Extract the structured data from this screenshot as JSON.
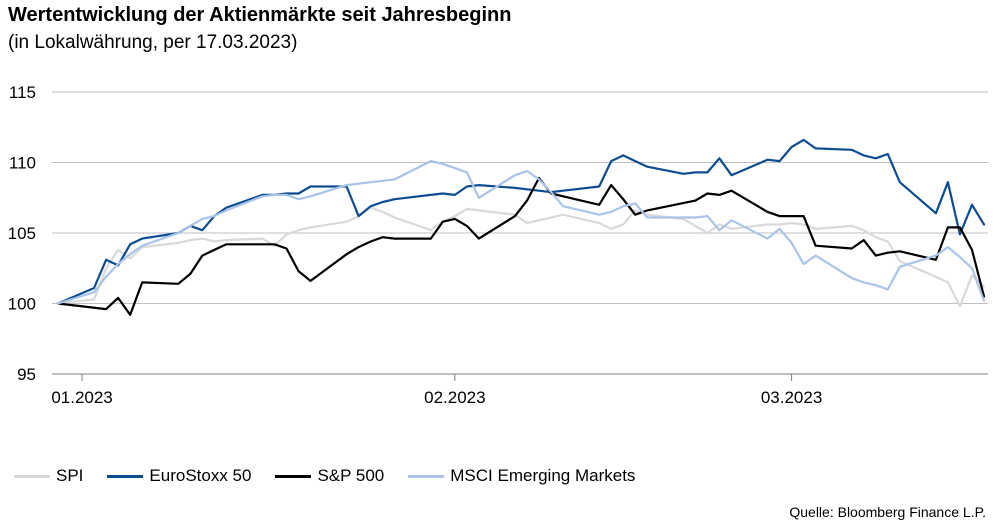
{
  "header": {
    "title": "Wertentwicklung der Aktienmärkte seit Jahresbeginn",
    "subtitle": "(in Lokalwährung, per 17.03.2023)"
  },
  "source": "Quelle: Bloomberg Finance L.P.",
  "chart_data": {
    "type": "line",
    "title": "Wertentwicklung der Aktienmärkte seit Jahresbeginn",
    "subtitle": "(in Lokalwährung, per 17.03.2023)",
    "xlabel": "",
    "ylabel": "",
    "ylim": [
      95,
      115
    ],
    "yticks": [
      95,
      100,
      105,
      110,
      115
    ],
    "xlim": [
      "2022-12-30",
      "2023-03-17"
    ],
    "xticks": [
      {
        "date": "2023-01-01",
        "label": "01.2023"
      },
      {
        "date": "2023-02-01",
        "label": "02.2023"
      },
      {
        "date": "2023-03-01",
        "label": "03.2023"
      }
    ],
    "grid": "horizontal",
    "legend": "bottom",
    "series": [
      {
        "name": "SPI",
        "color": "#d9d9d9",
        "points": [
          [
            "2022-12-30",
            100.0
          ],
          [
            "2023-01-02",
            100.3
          ],
          [
            "2023-01-03",
            102.5
          ],
          [
            "2023-01-04",
            103.8
          ],
          [
            "2023-01-05",
            103.2
          ],
          [
            "2023-01-06",
            104.0
          ],
          [
            "2023-01-09",
            104.3
          ],
          [
            "2023-01-10",
            104.5
          ],
          [
            "2023-01-11",
            104.6
          ],
          [
            "2023-01-12",
            104.4
          ],
          [
            "2023-01-13",
            104.5
          ],
          [
            "2023-01-16",
            104.6
          ],
          [
            "2023-01-17",
            104.1
          ],
          [
            "2023-01-18",
            104.9
          ],
          [
            "2023-01-19",
            105.2
          ],
          [
            "2023-01-20",
            105.4
          ],
          [
            "2023-01-23",
            105.8
          ],
          [
            "2023-01-24",
            106.2
          ],
          [
            "2023-01-25",
            106.8
          ],
          [
            "2023-01-26",
            106.5
          ],
          [
            "2023-01-27",
            106.1
          ],
          [
            "2023-01-30",
            105.2
          ],
          [
            "2023-01-31",
            105.8
          ],
          [
            "2023-02-01",
            106.2
          ],
          [
            "2023-02-02",
            106.7
          ],
          [
            "2023-02-03",
            106.6
          ],
          [
            "2023-02-06",
            106.3
          ],
          [
            "2023-02-07",
            105.7
          ],
          [
            "2023-02-08",
            105.9
          ],
          [
            "2023-02-09",
            106.1
          ],
          [
            "2023-02-10",
            106.3
          ],
          [
            "2023-02-13",
            105.7
          ],
          [
            "2023-02-14",
            105.3
          ],
          [
            "2023-02-15",
            105.6
          ],
          [
            "2023-02-16",
            106.6
          ],
          [
            "2023-02-17",
            106.3
          ],
          [
            "2023-02-20",
            106.0
          ],
          [
            "2023-02-21",
            105.5
          ],
          [
            "2023-02-22",
            105.0
          ],
          [
            "2023-02-23",
            105.6
          ],
          [
            "2023-02-24",
            105.3
          ],
          [
            "2023-02-27",
            105.6
          ],
          [
            "2023-02-28",
            105.6
          ],
          [
            "2023-03-01",
            105.7
          ],
          [
            "2023-03-02",
            105.6
          ],
          [
            "2023-03-03",
            105.3
          ],
          [
            "2023-03-06",
            105.5
          ],
          [
            "2023-03-07",
            105.2
          ],
          [
            "2023-03-08",
            104.7
          ],
          [
            "2023-03-09",
            104.4
          ],
          [
            "2023-03-10",
            103.0
          ],
          [
            "2023-03-13",
            101.9
          ],
          [
            "2023-03-14",
            101.5
          ],
          [
            "2023-03-15",
            99.8
          ],
          [
            "2023-03-16",
            102.0
          ],
          [
            "2023-03-17",
            101.2
          ]
        ]
      },
      {
        "name": "EuroStoxx 50",
        "color": "#0e4c92",
        "points": [
          [
            "2022-12-30",
            100.0
          ],
          [
            "2023-01-02",
            101.1
          ],
          [
            "2023-01-03",
            103.1
          ],
          [
            "2023-01-04",
            102.7
          ],
          [
            "2023-01-05",
            104.2
          ],
          [
            "2023-01-06",
            104.6
          ],
          [
            "2023-01-09",
            105.0
          ],
          [
            "2023-01-10",
            105.5
          ],
          [
            "2023-01-11",
            105.2
          ],
          [
            "2023-01-12",
            106.2
          ],
          [
            "2023-01-13",
            106.8
          ],
          [
            "2023-01-16",
            107.7
          ],
          [
            "2023-01-17",
            107.7
          ],
          [
            "2023-01-18",
            107.8
          ],
          [
            "2023-01-19",
            107.8
          ],
          [
            "2023-01-20",
            108.3
          ],
          [
            "2023-01-23",
            108.3
          ],
          [
            "2023-01-24",
            106.2
          ],
          [
            "2023-01-25",
            106.9
          ],
          [
            "2023-01-26",
            107.2
          ],
          [
            "2023-01-27",
            107.4
          ],
          [
            "2023-01-30",
            107.7
          ],
          [
            "2023-01-31",
            107.8
          ],
          [
            "2023-02-01",
            107.7
          ],
          [
            "2023-02-02",
            108.3
          ],
          [
            "2023-02-03",
            108.4
          ],
          [
            "2023-02-06",
            108.2
          ],
          [
            "2023-02-07",
            108.1
          ],
          [
            "2023-02-08",
            108.0
          ],
          [
            "2023-02-09",
            107.9
          ],
          [
            "2023-02-10",
            108.0
          ],
          [
            "2023-02-13",
            108.3
          ],
          [
            "2023-02-14",
            110.1
          ],
          [
            "2023-02-15",
            110.5
          ],
          [
            "2023-02-16",
            110.1
          ],
          [
            "2023-02-17",
            109.7
          ],
          [
            "2023-02-20",
            109.2
          ],
          [
            "2023-02-21",
            109.3
          ],
          [
            "2023-02-22",
            109.3
          ],
          [
            "2023-02-23",
            110.3
          ],
          [
            "2023-02-24",
            109.1
          ],
          [
            "2023-02-27",
            110.2
          ],
          [
            "2023-02-28",
            110.1
          ],
          [
            "2023-03-01",
            111.1
          ],
          [
            "2023-03-02",
            111.6
          ],
          [
            "2023-03-03",
            111.0
          ],
          [
            "2023-03-06",
            110.9
          ],
          [
            "2023-03-07",
            110.5
          ],
          [
            "2023-03-08",
            110.3
          ],
          [
            "2023-03-09",
            110.6
          ],
          [
            "2023-03-10",
            108.6
          ],
          [
            "2023-03-13",
            106.4
          ],
          [
            "2023-03-14",
            108.6
          ],
          [
            "2023-03-15",
            104.9
          ],
          [
            "2023-03-16",
            107.0
          ],
          [
            "2023-03-17",
            105.6
          ]
        ]
      },
      {
        "name": "S&P 500",
        "color": "#000000",
        "points": [
          [
            "2022-12-30",
            100.0
          ],
          [
            "2023-01-03",
            99.6
          ],
          [
            "2023-01-04",
            100.4
          ],
          [
            "2023-01-05",
            99.2
          ],
          [
            "2023-01-06",
            101.5
          ],
          [
            "2023-01-09",
            101.4
          ],
          [
            "2023-01-10",
            102.1
          ],
          [
            "2023-01-11",
            103.4
          ],
          [
            "2023-01-12",
            103.8
          ],
          [
            "2023-01-13",
            104.2
          ],
          [
            "2023-01-17",
            104.2
          ],
          [
            "2023-01-18",
            103.9
          ],
          [
            "2023-01-19",
            102.3
          ],
          [
            "2023-01-20",
            101.6
          ],
          [
            "2023-01-23",
            103.5
          ],
          [
            "2023-01-24",
            104.0
          ],
          [
            "2023-01-25",
            104.4
          ],
          [
            "2023-01-26",
            104.7
          ],
          [
            "2023-01-27",
            104.6
          ],
          [
            "2023-01-30",
            104.6
          ],
          [
            "2023-01-31",
            105.8
          ],
          [
            "2023-02-01",
            106.0
          ],
          [
            "2023-02-02",
            105.5
          ],
          [
            "2023-02-03",
            104.6
          ],
          [
            "2023-02-06",
            106.2
          ],
          [
            "2023-02-07",
            107.3
          ],
          [
            "2023-02-08",
            108.9
          ],
          [
            "2023-02-09",
            107.8
          ],
          [
            "2023-02-10",
            107.6
          ],
          [
            "2023-02-13",
            107.0
          ],
          [
            "2023-02-14",
            108.4
          ],
          [
            "2023-02-15",
            107.4
          ],
          [
            "2023-02-16",
            106.3
          ],
          [
            "2023-02-17",
            106.6
          ],
          [
            "2023-02-21",
            107.3
          ],
          [
            "2023-02-22",
            107.8
          ],
          [
            "2023-02-23",
            107.7
          ],
          [
            "2023-02-24",
            108.0
          ],
          [
            "2023-02-27",
            106.5
          ],
          [
            "2023-02-28",
            106.2
          ],
          [
            "2023-03-01",
            106.2
          ],
          [
            "2023-03-02",
            106.2
          ],
          [
            "2023-03-03",
            104.1
          ],
          [
            "2023-03-06",
            103.9
          ],
          [
            "2023-03-07",
            104.5
          ],
          [
            "2023-03-08",
            103.4
          ],
          [
            "2023-03-09",
            103.6
          ],
          [
            "2023-03-10",
            103.7
          ],
          [
            "2023-03-13",
            103.1
          ],
          [
            "2023-03-14",
            105.4
          ],
          [
            "2023-03-15",
            105.4
          ],
          [
            "2023-03-16",
            103.8
          ],
          [
            "2023-03-17",
            100.5
          ]
        ]
      },
      {
        "name": "MSCI Emerging Markets",
        "color": "#a9c4e8",
        "points": [
          [
            "2022-12-30",
            100.0
          ],
          [
            "2023-01-02",
            100.8
          ],
          [
            "2023-01-03",
            101.9
          ],
          [
            "2023-01-04",
            102.8
          ],
          [
            "2023-01-05",
            103.5
          ],
          [
            "2023-01-06",
            104.1
          ],
          [
            "2023-01-09",
            105.0
          ],
          [
            "2023-01-10",
            105.5
          ],
          [
            "2023-01-11",
            106.0
          ],
          [
            "2023-01-12",
            106.2
          ],
          [
            "2023-01-13",
            106.6
          ],
          [
            "2023-01-16",
            107.6
          ],
          [
            "2023-01-17",
            107.7
          ],
          [
            "2023-01-18",
            107.7
          ],
          [
            "2023-01-19",
            107.4
          ],
          [
            "2023-01-20",
            107.6
          ],
          [
            "2023-01-23",
            108.4
          ],
          [
            "2023-01-24",
            108.5
          ],
          [
            "2023-01-25",
            108.6
          ],
          [
            "2023-01-26",
            108.7
          ],
          [
            "2023-01-27",
            108.8
          ],
          [
            "2023-01-30",
            110.1
          ],
          [
            "2023-01-31",
            109.9
          ],
          [
            "2023-02-01",
            109.6
          ],
          [
            "2023-02-02",
            109.3
          ],
          [
            "2023-02-03",
            107.5
          ],
          [
            "2023-02-06",
            109.1
          ],
          [
            "2023-02-07",
            109.4
          ],
          [
            "2023-02-08",
            108.8
          ],
          [
            "2023-02-09",
            107.9
          ],
          [
            "2023-02-10",
            106.9
          ],
          [
            "2023-02-13",
            106.3
          ],
          [
            "2023-02-14",
            106.5
          ],
          [
            "2023-02-15",
            106.9
          ],
          [
            "2023-02-16",
            107.1
          ],
          [
            "2023-02-17",
            106.1
          ],
          [
            "2023-02-20",
            106.1
          ],
          [
            "2023-02-21",
            106.1
          ],
          [
            "2023-02-22",
            106.2
          ],
          [
            "2023-02-23",
            105.2
          ],
          [
            "2023-02-24",
            105.9
          ],
          [
            "2023-02-27",
            104.6
          ],
          [
            "2023-02-28",
            105.3
          ],
          [
            "2023-03-01",
            104.3
          ],
          [
            "2023-03-02",
            102.8
          ],
          [
            "2023-03-03",
            103.4
          ],
          [
            "2023-03-06",
            101.8
          ],
          [
            "2023-03-07",
            101.5
          ],
          [
            "2023-03-08",
            101.3
          ],
          [
            "2023-03-09",
            101.0
          ],
          [
            "2023-03-10",
            102.6
          ],
          [
            "2023-03-13",
            103.4
          ],
          [
            "2023-03-14",
            104.0
          ],
          [
            "2023-03-15",
            103.3
          ],
          [
            "2023-03-16",
            102.5
          ],
          [
            "2023-03-17",
            100.2
          ]
        ]
      }
    ]
  }
}
